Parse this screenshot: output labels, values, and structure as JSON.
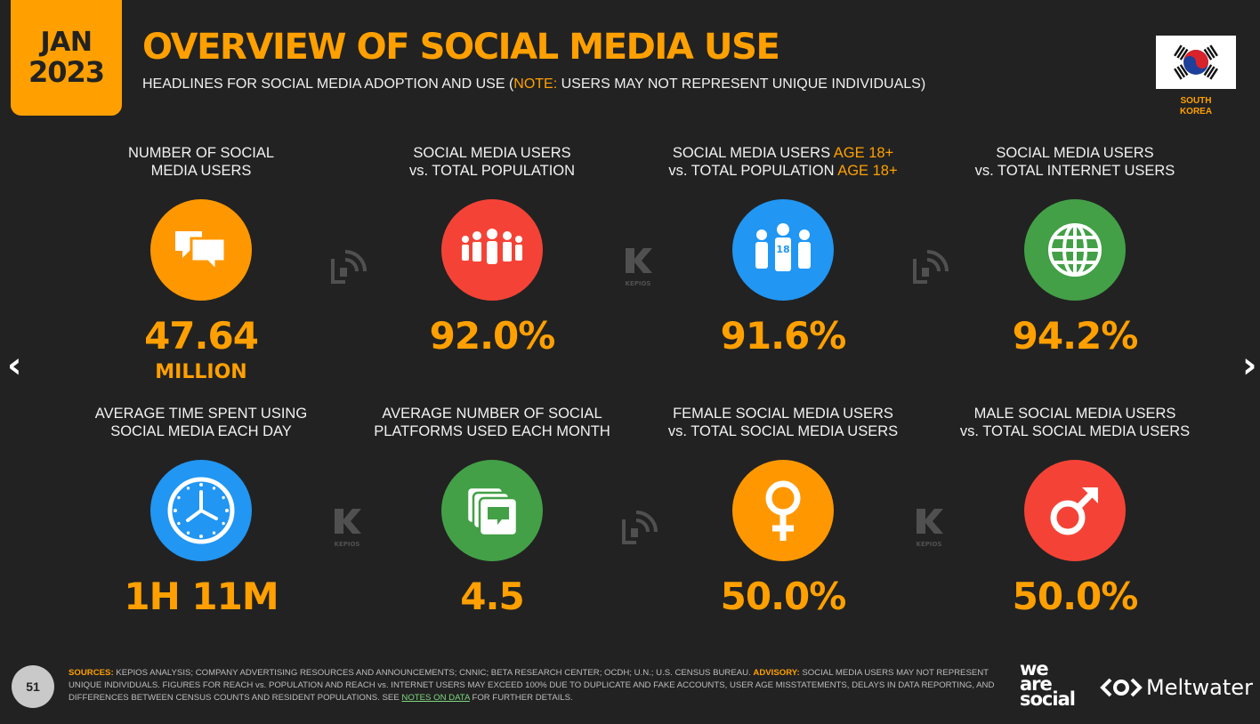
{
  "header": {
    "date_month": "JAN",
    "date_year": "2023",
    "title": "OVERVIEW OF SOCIAL MEDIA USE",
    "subtitle_pre": "HEADLINES FOR SOCIAL MEDIA ADOPTION AND USE (",
    "subtitle_note": "NOTE:",
    "subtitle_post": " USERS MAY NOT REPRESENT UNIQUE INDIVIDUALS)",
    "country_line1": "SOUTH",
    "country_line2": "KOREA"
  },
  "nav": {
    "prev": "‹",
    "next": "›"
  },
  "stats": [
    {
      "label1": "NUMBER OF SOCIAL",
      "label2": "MEDIA USERS",
      "value": "47.64",
      "unit": "MILLION",
      "icon": "speech-bubbles-icon",
      "color": "#ff9800"
    },
    {
      "label1": "SOCIAL MEDIA USERS",
      "label2": "vs. TOTAL POPULATION",
      "value": "92.0%",
      "icon": "people-group-icon",
      "color": "#f44336"
    },
    {
      "label1a": "SOCIAL MEDIA USERS ",
      "label1b": "AGE 18+",
      "label2a": "vs. TOTAL POPULATION ",
      "label2b": "AGE 18+",
      "value": "91.6%",
      "icon": "adults-18-icon",
      "color": "#2196f3"
    },
    {
      "label1": "SOCIAL MEDIA USERS",
      "label2": "vs. TOTAL INTERNET USERS",
      "value": "94.2%",
      "icon": "globe-icon",
      "color": "#43a047"
    },
    {
      "label1": "AVERAGE TIME SPENT USING",
      "label2": "SOCIAL MEDIA EACH DAY",
      "value": "1H 11M",
      "icon": "clock-icon",
      "color": "#2196f3"
    },
    {
      "label1": "AVERAGE NUMBER OF SOCIAL",
      "label2": "PLATFORMS USED EACH MONTH",
      "value": "4.5",
      "icon": "stacked-chats-icon",
      "color": "#43a047"
    },
    {
      "label1": "FEMALE SOCIAL MEDIA USERS",
      "label2": "vs. TOTAL SOCIAL MEDIA USERS",
      "value": "50.0%",
      "icon": "female-symbol-icon",
      "color": "#ff9800"
    },
    {
      "label1": "MALE SOCIAL MEDIA USERS",
      "label2": "vs. TOTAL SOCIAL MEDIA USERS",
      "value": "50.0%",
      "icon": "male-symbol-icon",
      "color": "#f44336"
    }
  ],
  "watermark": {
    "kepios": "KEPIOS"
  },
  "footer": {
    "page_number": "51",
    "sources_key": "SOURCES:",
    "sources_text": " KEPIOS ANALYSIS; COMPANY ADVERTISING RESOURCES AND ANNOUNCEMENTS; CNNIC; BETA RESEARCH CENTER; OCDH; U.N.; U.S. CENSUS BUREAU. ",
    "advisory_key": "ADVISORY:",
    "advisory_text": " SOCIAL MEDIA USERS MAY NOT REPRESENT UNIQUE INDIVIDUALS. FIGURES FOR REACH vs. POPULATION AND REACH vs. INTERNET USERS MAY EXCEED 100% DUE TO DUPLICATE AND FAKE ACCOUNTS, USER AGE MISSTATEMENTS, DELAYS IN DATA REPORTING, AND DIFFERENCES BETWEEN CENSUS COUNTS AND RESIDENT POPULATIONS. SEE ",
    "notes_link": "NOTES ON DATA",
    "tail": " FOR FURTHER DETAILS.",
    "brand1_l1": "we",
    "brand1_l2": "are",
    "brand1_l3": "social",
    "brand2": "Meltwater"
  }
}
